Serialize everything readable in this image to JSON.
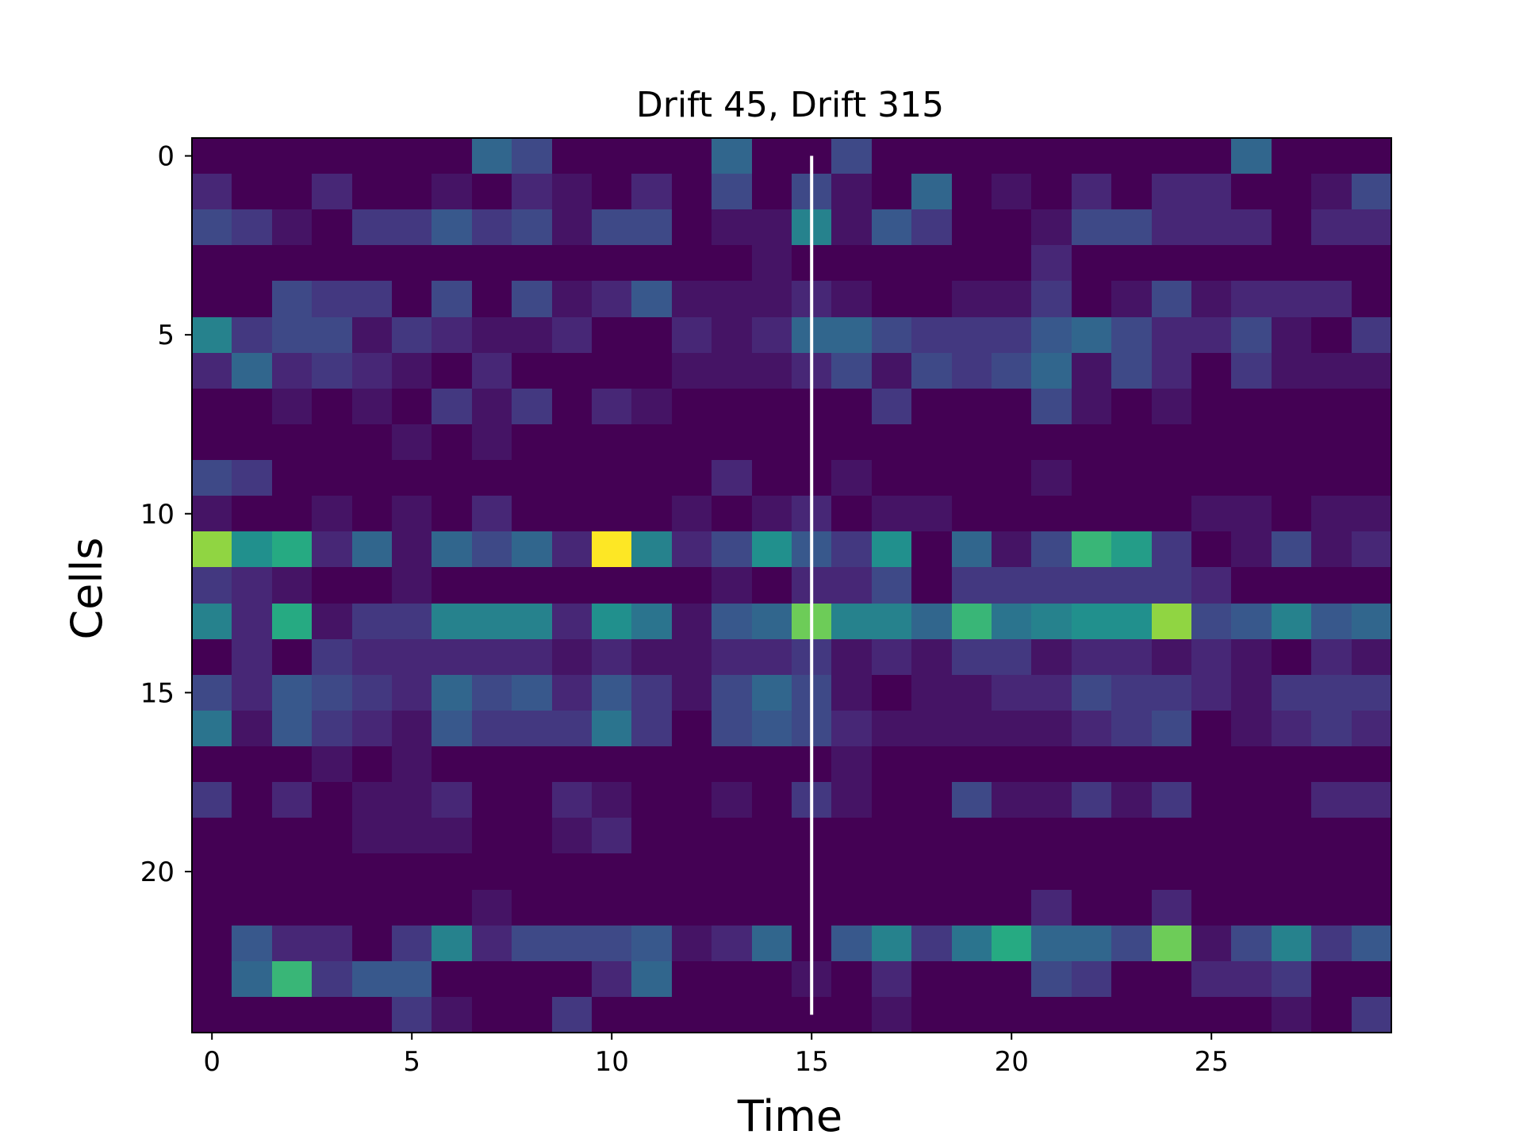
{
  "chart_data": {
    "type": "heatmap",
    "title": "Drift 45, Drift 315",
    "xlabel": "Time",
    "ylabel": "Cells",
    "xlim": [
      -0.5,
      29.5
    ],
    "ylim": [
      24.5,
      -0.5
    ],
    "grid": false,
    "legend": "none",
    "colormap": "viridis",
    "x_ticks": [
      0,
      5,
      10,
      15,
      20,
      25
    ],
    "y_ticks": [
      0,
      5,
      10,
      15,
      20
    ],
    "x_tick_labels": [
      "0",
      "5",
      "10",
      "15",
      "20",
      "25"
    ],
    "y_tick_labels": [
      "0",
      "5",
      "10",
      "15",
      "20"
    ],
    "marker_line": {
      "x": 15,
      "y_from": 0,
      "y_to": 24,
      "color": "#ffffff"
    },
    "color_range": [
      0,
      9
    ],
    "values": [
      [
        0,
        0,
        0,
        0,
        0,
        0,
        0,
        3,
        2,
        0,
        0,
        0,
        0,
        3,
        0,
        0,
        2,
        0,
        0,
        0,
        0,
        0,
        0,
        0,
        0,
        0,
        3,
        0,
        0,
        0
      ],
      [
        1,
        0,
        0,
        1,
        0,
        0,
        0.5,
        0,
        1,
        0.5,
        0,
        1,
        0,
        2,
        0,
        2,
        0.5,
        0,
        3,
        0,
        0.5,
        0,
        1,
        0,
        1,
        1,
        0,
        0,
        0.5,
        2
      ],
      [
        2,
        1.5,
        0.5,
        0,
        1.5,
        1.5,
        2.5,
        1.5,
        2,
        0.5,
        2,
        2,
        0,
        0.5,
        0.5,
        4,
        0.5,
        2.5,
        1.5,
        0,
        0,
        0.5,
        2,
        2,
        1,
        1,
        1,
        0,
        1,
        1
      ],
      [
        0,
        0,
        0,
        0,
        0,
        0,
        0,
        0,
        0,
        0,
        0,
        0,
        0,
        0,
        0.5,
        0,
        0,
        0,
        0,
        0,
        0,
        1,
        0,
        0,
        0,
        0,
        0,
        0,
        0,
        0
      ],
      [
        0,
        0,
        2,
        1.5,
        1.5,
        0,
        2,
        0,
        2,
        0.5,
        1,
        2.5,
        0.5,
        0.5,
        0.5,
        1,
        0.5,
        0,
        0,
        0.5,
        0.5,
        1.5,
        0,
        0.5,
        2,
        0.5,
        1,
        1,
        1,
        0
      ],
      [
        4,
        1.5,
        2,
        2,
        0.5,
        1.5,
        1,
        0.5,
        0.5,
        1,
        0,
        0,
        1,
        0.5,
        1,
        3,
        3,
        2,
        1.5,
        1.5,
        1.5,
        2.5,
        3,
        2,
        1,
        1,
        2,
        0.5,
        0,
        1.5
      ],
      [
        1,
        3,
        1,
        1.5,
        1,
        0.5,
        0,
        1,
        0,
        0,
        0,
        0,
        0.5,
        0.5,
        0.5,
        1,
        2,
        0.5,
        2,
        1.5,
        2,
        3,
        0.5,
        2,
        1,
        0,
        1.5,
        0.5,
        0.5,
        0.5
      ],
      [
        0,
        0,
        0.5,
        0,
        0.5,
        0,
        1.5,
        0.5,
        1.5,
        0,
        1,
        0.5,
        0,
        0,
        0,
        0,
        0,
        1.5,
        0,
        0,
        0,
        2,
        0.5,
        0,
        0.5,
        0,
        0,
        0,
        0,
        0
      ],
      [
        0,
        0,
        0,
        0,
        0,
        0.5,
        0,
        0.5,
        0,
        0,
        0,
        0,
        0,
        0,
        0,
        0,
        0,
        0,
        0,
        0,
        0,
        0,
        0,
        0,
        0,
        0,
        0,
        0,
        0,
        0
      ],
      [
        2,
        1.5,
        0,
        0,
        0,
        0,
        0,
        0,
        0,
        0,
        0,
        0,
        0,
        1,
        0,
        0,
        0.5,
        0,
        0,
        0,
        0,
        0.5,
        0,
        0,
        0,
        0,
        0,
        0,
        0,
        0
      ],
      [
        0.5,
        0,
        0,
        0.5,
        0,
        0.5,
        0,
        1,
        0,
        0,
        0,
        0,
        0.5,
        0,
        0.5,
        1,
        0,
        0.5,
        0.5,
        0,
        0,
        0,
        0,
        0,
        0,
        0.5,
        0.5,
        0,
        0.5,
        0.5
      ],
      [
        7.5,
        4.5,
        5.5,
        1,
        3,
        0.5,
        3,
        2,
        3,
        1,
        9,
        4,
        1,
        2,
        4.5,
        2.5,
        1.5,
        4.5,
        0,
        3,
        0.5,
        2,
        6,
        5,
        1.5,
        0,
        0.5,
        2,
        0.5,
        1
      ],
      [
        1.5,
        1,
        0.5,
        0,
        0,
        0.5,
        0,
        0,
        0,
        0,
        0,
        0,
        0,
        0.5,
        0,
        1,
        1,
        2,
        0,
        1.5,
        1.5,
        1.5,
        1.5,
        1.5,
        1.5,
        1,
        0,
        0,
        0,
        0
      ],
      [
        4,
        1,
        5.5,
        0.5,
        1.5,
        1.5,
        4,
        4,
        4,
        1,
        4.5,
        3.5,
        0.5,
        2.5,
        3,
        7,
        4,
        4,
        3,
        6,
        3.5,
        4,
        4.5,
        4.5,
        7.5,
        2,
        2.5,
        4,
        2.5,
        3
      ],
      [
        0,
        1,
        0,
        1.5,
        1,
        1,
        1,
        1,
        1,
        0.5,
        1,
        0.5,
        0.5,
        1,
        1,
        1.5,
        0.5,
        1,
        0.5,
        1.5,
        1.5,
        0.5,
        1,
        1,
        0.5,
        1,
        0.5,
        0,
        1,
        0.5
      ],
      [
        2,
        1,
        2.5,
        2,
        1.5,
        1,
        3,
        2,
        2.5,
        1,
        2.5,
        1.5,
        0.5,
        2,
        3,
        2,
        0.5,
        0,
        0.5,
        0.5,
        1,
        1,
        2,
        1.5,
        1.5,
        1,
        0.5,
        1.5,
        1.5,
        1.5
      ],
      [
        3.5,
        0.5,
        2.5,
        1.5,
        1,
        0.5,
        2.5,
        1.5,
        1.5,
        1.5,
        3.5,
        1.5,
        0,
        2,
        2.5,
        2,
        1,
        0.5,
        0.5,
        0.5,
        0.5,
        0.5,
        1,
        1.5,
        2,
        0,
        0.5,
        1,
        1.5,
        1
      ],
      [
        0,
        0,
        0,
        0.5,
        0,
        0.5,
        0,
        0,
        0,
        0,
        0,
        0,
        0,
        0,
        0,
        0,
        0.5,
        0,
        0,
        0,
        0,
        0,
        0,
        0,
        0,
        0,
        0,
        0,
        0,
        0
      ],
      [
        1.5,
        0,
        1,
        0,
        0.5,
        0.5,
        1,
        0,
        0,
        1,
        0.5,
        0,
        0,
        0.5,
        0,
        1.5,
        0.5,
        0,
        0,
        2,
        0.5,
        0.5,
        1.5,
        0.5,
        1.5,
        0,
        0,
        0,
        1,
        1
      ],
      [
        0,
        0,
        0,
        0,
        0.5,
        0.5,
        0.5,
        0,
        0,
        0.5,
        1,
        0,
        0,
        0,
        0,
        0,
        0,
        0,
        0,
        0,
        0,
        0,
        0,
        0,
        0,
        0,
        0,
        0,
        0,
        0
      ],
      [
        0,
        0,
        0,
        0,
        0,
        0,
        0,
        0,
        0,
        0,
        0,
        0,
        0,
        0,
        0,
        0,
        0,
        0,
        0,
        0,
        0,
        0,
        0,
        0,
        0,
        0,
        0,
        0,
        0,
        0
      ],
      [
        0,
        0,
        0,
        0,
        0,
        0,
        0,
        0.5,
        0,
        0,
        0,
        0,
        0,
        0,
        0,
        0,
        0,
        0,
        0,
        0,
        0,
        1,
        0,
        0,
        1,
        0,
        0,
        0,
        0,
        0
      ],
      [
        0,
        2.5,
        1,
        1,
        0,
        1.5,
        4,
        1,
        2,
        2,
        2,
        2.5,
        0.5,
        1,
        3,
        0,
        2.5,
        4,
        1.5,
        3.5,
        5.5,
        3,
        3,
        2,
        7,
        0.5,
        2,
        4,
        1.5,
        2.5
      ],
      [
        0,
        3,
        6,
        1.5,
        2.5,
        2.5,
        0,
        0,
        0,
        0,
        1,
        3,
        0,
        0,
        0,
        0.5,
        0,
        1,
        0,
        0,
        0,
        2,
        1.5,
        0,
        0,
        1,
        1,
        1.5,
        0,
        0
      ],
      [
        0,
        0,
        0,
        0,
        0,
        1.5,
        0.5,
        0,
        0,
        1.5,
        0,
        0,
        0,
        0,
        0,
        0,
        0,
        0.5,
        0,
        0,
        0,
        0,
        0,
        0,
        0,
        0,
        0,
        0.5,
        0,
        1.5
      ]
    ]
  }
}
